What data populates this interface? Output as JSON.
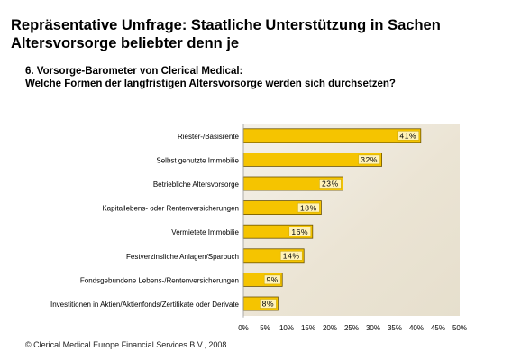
{
  "header": {
    "title_line1": "Repräsentative Umfrage: Staatliche Unterstützung in Sachen",
    "title_line2": "Altersvorsorge beliebter denn je",
    "subtitle_line1": "6. Vorsorge-Barometer von Clerical Medical:",
    "subtitle_line2": "Welche Formen der langfristigen Altersvorsorge werden sich durchsetzen?"
  },
  "footer": {
    "copyright": "© Clerical Medical Europe Financial Services B.V., 2008"
  },
  "colors": {
    "bar_fill": "#f5c400",
    "bar_stroke": "#6b5300",
    "label_box_fill": "#fff2b8",
    "plot_background": "#efe9dc"
  },
  "chart_data": {
    "type": "bar",
    "orientation": "horizontal",
    "categories": [
      "Riester-/Basisrente",
      "Selbst genutzte Immobilie",
      "Betriebliche Altersvorsorge",
      "Kapitallebens- oder Rentenversicherungen",
      "Vermietete Immobilie",
      "Festverzinsliche Anlagen/Sparbuch",
      "Fondsgebundene Lebens-/Rentenversicherungen",
      "Investitionen in Aktien/Aktienfonds/Zertifikate oder Derivate"
    ],
    "values": [
      41,
      32,
      23,
      18,
      16,
      14,
      9,
      8
    ],
    "data_labels": [
      "41%",
      "32%",
      "23%",
      "18%",
      "16%",
      "14%",
      "9%",
      "8%"
    ],
    "xlim": [
      0,
      50
    ],
    "x_ticks": [
      "0%",
      "5%",
      "10%",
      "15%",
      "20%",
      "25%",
      "30%",
      "35%",
      "40%",
      "45%",
      "50%"
    ],
    "grid": false,
    "legend": "none"
  }
}
